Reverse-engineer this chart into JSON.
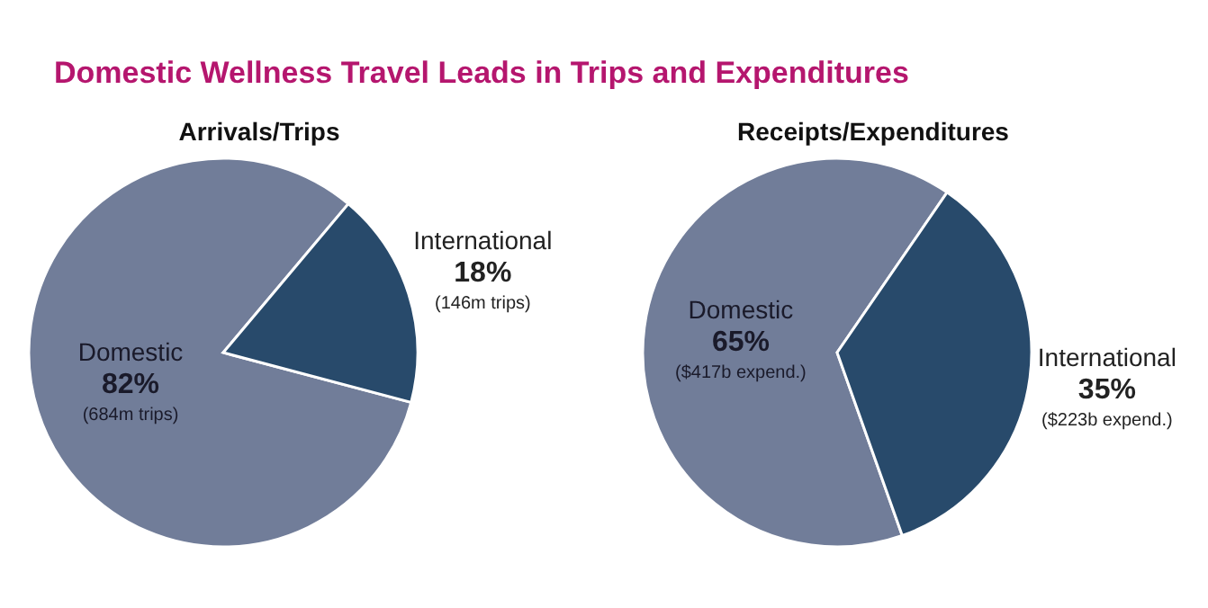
{
  "chart_data": [
    {
      "type": "pie",
      "title": "Domestic Wellness Travel Leads in Trips and Expenditures",
      "subtitle": "Arrivals/Trips",
      "categories": [
        "Domestic",
        "International"
      ],
      "values": [
        82,
        18
      ],
      "colors": [
        "#717d99",
        "#284a6b"
      ],
      "value_labels": [
        "82%",
        "18%"
      ],
      "annotations": [
        "(684m trips)",
        "(146m trips)"
      ]
    },
    {
      "type": "pie",
      "subtitle": "Receipts/Expenditures",
      "categories": [
        "Domestic",
        "International"
      ],
      "values": [
        65,
        35
      ],
      "colors": [
        "#717d99",
        "#284a6b"
      ],
      "value_labels": [
        "65%",
        "35%"
      ],
      "annotations": [
        "($417b expend.)",
        "($223b expend.)"
      ]
    }
  ]
}
